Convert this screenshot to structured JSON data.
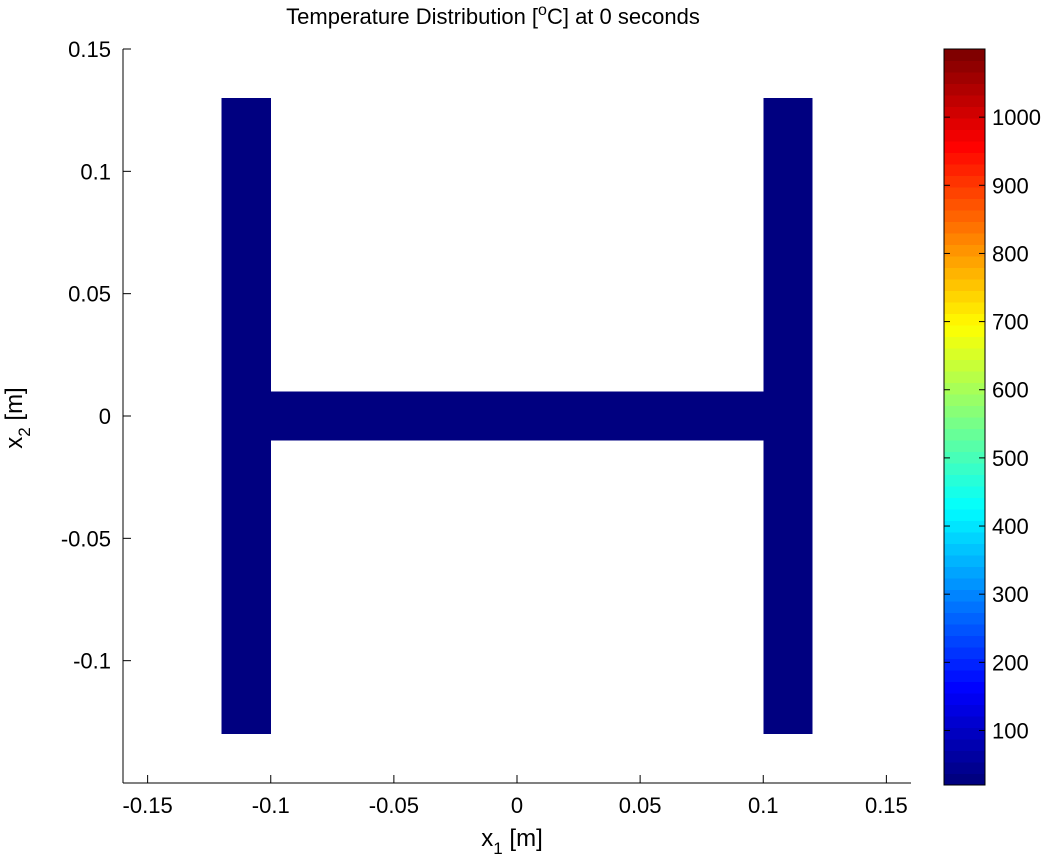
{
  "chart_data": {
    "type": "heatmap",
    "title_prefix": "Temperature Distribution [",
    "title_degree": "o",
    "title_suffix": "C] at 0 seconds",
    "xlabel": {
      "base": "x",
      "sub": "1",
      "unit": " [m]"
    },
    "ylabel": {
      "base": "x",
      "sub": "2",
      "unit": " [m]"
    },
    "xlim": [
      -0.16,
      0.16
    ],
    "ylim": [
      -0.15,
      0.15
    ],
    "xticks": [
      -0.15,
      -0.1,
      -0.05,
      0,
      0.05,
      0.1,
      0.15
    ],
    "xtick_labels": [
      "-0.15",
      "-0.1",
      "-0.05",
      "0",
      "0.05",
      "0.1",
      "0.15"
    ],
    "yticks": [
      0.15,
      0.1,
      0.05,
      0,
      -0.05,
      -0.1
    ],
    "ytick_labels": [
      "0.15",
      "0.1",
      "0.05",
      "0",
      "-0.05",
      "-0.1"
    ],
    "shape": {
      "name": "H-profile",
      "regions": [
        {
          "name": "left-flange",
          "x": [
            -0.12,
            -0.1
          ],
          "y": [
            -0.13,
            0.13
          ],
          "temperature": 20
        },
        {
          "name": "right-flange",
          "x": [
            0.1,
            0.12
          ],
          "y": [
            -0.13,
            0.13
          ],
          "temperature": 20
        },
        {
          "name": "web",
          "x": [
            -0.1,
            0.1
          ],
          "y": [
            -0.01,
            0.01
          ],
          "temperature": 20
        }
      ]
    },
    "colorbar": {
      "colormap": "jet",
      "clim": [
        20,
        1100
      ],
      "ticks": [
        100,
        200,
        300,
        400,
        500,
        600,
        700,
        800,
        900,
        1000
      ],
      "tick_labels": [
        "100",
        "200",
        "300",
        "400",
        "500",
        "600",
        "700",
        "800",
        "900",
        "1000"
      ]
    },
    "grid": false
  }
}
